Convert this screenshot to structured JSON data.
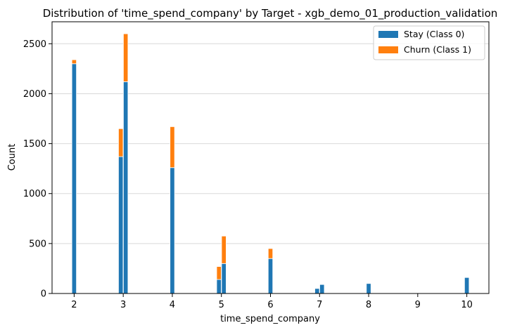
{
  "chart_data": {
    "type": "bar",
    "stacked": true,
    "title": "Distribution of 'time_spend_company' by Target - xgb_demo_01_production_validation",
    "xlabel": "time_spend_company",
    "ylabel": "Count",
    "xlim": [
      1.55,
      10.45
    ],
    "ylim": [
      0,
      2720
    ],
    "x_ticks": [
      2,
      3,
      4,
      5,
      6,
      7,
      8,
      9,
      10
    ],
    "x_tick_labels": [
      "2",
      "3",
      "4",
      "5",
      "6",
      "7",
      "8",
      "9",
      "10"
    ],
    "y_ticks": [
      0,
      500,
      1000,
      1500,
      2000,
      2500
    ],
    "y_tick_labels": [
      "0",
      "500",
      "1000",
      "1500",
      "2000",
      "2500"
    ],
    "grid": "y",
    "legend_position": "top-right",
    "colors": {
      "stay": "#1f77b4",
      "churn": "#ff7f0e"
    },
    "x": [
      2.0,
      2.95,
      3.05,
      4.0,
      4.95,
      5.05,
      6.0,
      6.95,
      7.05,
      8.0,
      10.0
    ],
    "series": [
      {
        "name": "Stay (Class 0)",
        "values": [
          2300,
          1370,
          2120,
          1260,
          140,
          300,
          350,
          50,
          90,
          100,
          160
        ]
      },
      {
        "name": "Churn (Class 1)",
        "values": [
          40,
          280,
          480,
          410,
          130,
          275,
          100,
          0,
          0,
          0,
          0
        ]
      }
    ]
  }
}
